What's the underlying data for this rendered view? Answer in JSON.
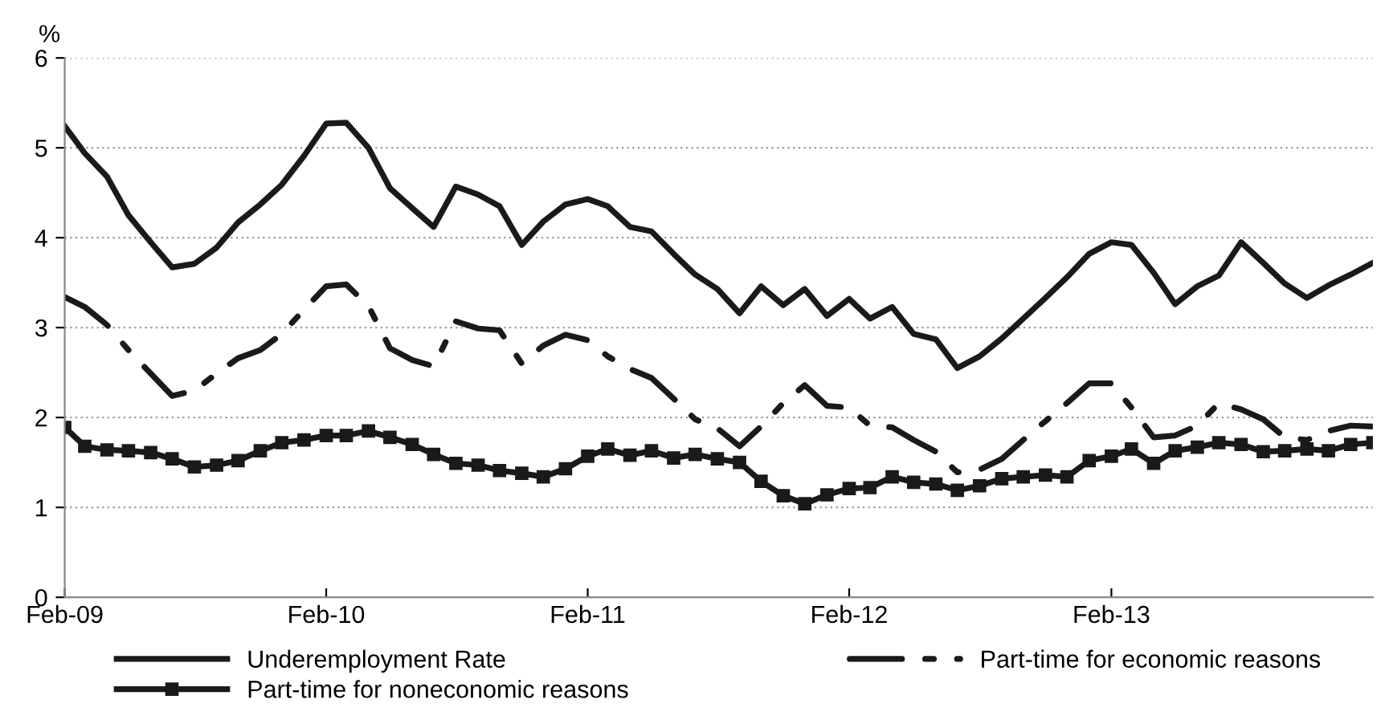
{
  "chart_data": {
    "type": "line",
    "ylabel": "%",
    "x": [
      "2009-02",
      "2009-03",
      "2009-04",
      "2009-05",
      "2009-06",
      "2009-07",
      "2009-08",
      "2009-09",
      "2009-10",
      "2009-11",
      "2009-12",
      "2010-01",
      "2010-02",
      "2010-03",
      "2010-04",
      "2010-05",
      "2010-06",
      "2010-07",
      "2010-08",
      "2010-09",
      "2010-10",
      "2010-11",
      "2010-12",
      "2011-01",
      "2011-02",
      "2011-03",
      "2011-04",
      "2011-05",
      "2011-06",
      "2011-07",
      "2011-08",
      "2011-09",
      "2011-10",
      "2011-11",
      "2011-12",
      "2012-01",
      "2012-02",
      "2012-03",
      "2012-04",
      "2012-05",
      "2012-06",
      "2012-07",
      "2012-08",
      "2012-09",
      "2012-10",
      "2012-11",
      "2012-12",
      "2013-01",
      "2013-02",
      "2013-03",
      "2013-04",
      "2013-05",
      "2013-06",
      "2013-07",
      "2013-08",
      "2013-09",
      "2013-10",
      "2013-11",
      "2013-12",
      "2014-01",
      "2014-02"
    ],
    "series": [
      {
        "name": "Underemployment Rate",
        "color": "#1a1a1a",
        "line_style": "solid",
        "marker": "none",
        "values": [
          5.24,
          4.94,
          4.68,
          4.25,
          3.95,
          3.67,
          3.71,
          3.89,
          4.17,
          4.37,
          4.59,
          4.91,
          5.27,
          5.28,
          5.0,
          4.55,
          4.33,
          4.12,
          4.57,
          4.48,
          4.35,
          3.92,
          4.18,
          4.37,
          4.43,
          4.35,
          4.12,
          4.07,
          3.82,
          3.59,
          3.43,
          3.16,
          3.46,
          3.25,
          3.43,
          3.13,
          3.32,
          3.1,
          3.23,
          2.93,
          2.87,
          2.55,
          2.68,
          2.88,
          3.1,
          3.33,
          3.56,
          3.82,
          3.95,
          3.92,
          3.61,
          3.26,
          3.46,
          3.58,
          3.95,
          3.72,
          3.49,
          3.33,
          3.47,
          3.59,
          3.72
        ]
      },
      {
        "name": "Part-time for economic reasons",
        "color": "#1a1a1a",
        "line_style": "dashed",
        "marker": "none",
        "values": [
          3.34,
          3.23,
          3.03,
          2.75,
          2.49,
          2.24,
          2.3,
          2.49,
          2.66,
          2.75,
          2.93,
          3.2,
          3.46,
          3.48,
          3.24,
          2.77,
          2.64,
          2.57,
          3.07,
          2.99,
          2.97,
          2.6,
          2.8,
          2.92,
          2.86,
          2.68,
          2.54,
          2.44,
          2.21,
          1.98,
          1.88,
          1.68,
          1.9,
          2.16,
          2.36,
          2.13,
          2.11,
          1.91,
          1.89,
          1.75,
          1.62,
          1.39,
          1.42,
          1.54,
          1.75,
          1.96,
          2.16,
          2.38,
          2.38,
          2.11,
          1.78,
          1.8,
          1.91,
          2.16,
          2.09,
          1.98,
          1.78,
          1.75,
          1.85,
          1.91,
          1.9
        ]
      },
      {
        "name": "Part-time for noneconomic reasons",
        "color": "#1a1a1a",
        "line_style": "solid",
        "marker": "square",
        "values": [
          1.89,
          1.68,
          1.64,
          1.63,
          1.61,
          1.54,
          1.45,
          1.47,
          1.52,
          1.63,
          1.72,
          1.75,
          1.8,
          1.8,
          1.85,
          1.78,
          1.7,
          1.59,
          1.49,
          1.47,
          1.41,
          1.38,
          1.34,
          1.43,
          1.57,
          1.65,
          1.58,
          1.63,
          1.55,
          1.59,
          1.54,
          1.5,
          1.29,
          1.13,
          1.04,
          1.14,
          1.21,
          1.22,
          1.34,
          1.28,
          1.26,
          1.19,
          1.24,
          1.32,
          1.34,
          1.36,
          1.34,
          1.52,
          1.57,
          1.65,
          1.49,
          1.63,
          1.67,
          1.72,
          1.7,
          1.62,
          1.63,
          1.65,
          1.63,
          1.7,
          1.72
        ]
      }
    ],
    "xlim": [
      "2009-02",
      "2014-02"
    ],
    "xticks": [
      {
        "value": "2009-02",
        "label": "Feb-09"
      },
      {
        "value": "2010-02",
        "label": "Feb-10"
      },
      {
        "value": "2011-02",
        "label": "Feb-11"
      },
      {
        "value": "2012-02",
        "label": "Feb-12"
      },
      {
        "value": "2013-02",
        "label": "Feb-13"
      }
    ],
    "ylim": [
      0,
      6
    ],
    "yticks": [
      0,
      1,
      2,
      3,
      4,
      5,
      6
    ],
    "grid": "y",
    "legend": "bottom"
  }
}
